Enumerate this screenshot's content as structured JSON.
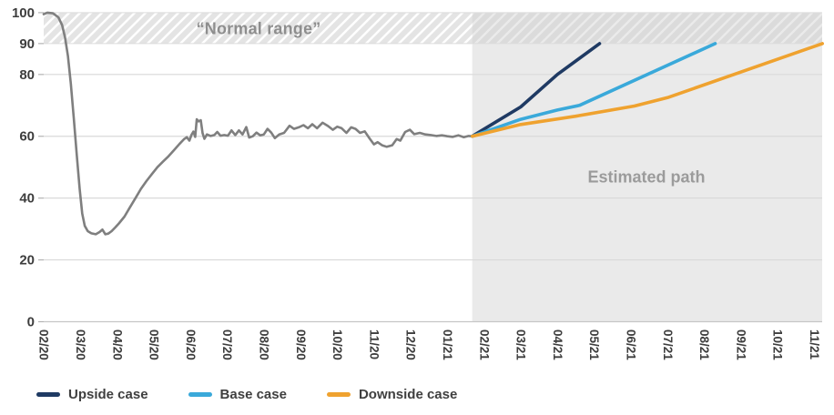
{
  "chart_data": {
    "type": "line",
    "title": "",
    "xlabel": "",
    "ylabel": "",
    "ylim": [
      0,
      100
    ],
    "grid": "horizontal",
    "x_tick_labels": [
      "02/20",
      "03/20",
      "04/20",
      "05/20",
      "06/20",
      "07/20",
      "08/20",
      "09/20",
      "10/20",
      "11/20",
      "12/20",
      "01/21",
      "02/21",
      "03/21",
      "04/21",
      "05/21",
      "06/21",
      "07/21",
      "08/21",
      "09/21",
      "10/21",
      "11/21"
    ],
    "y_tick_labels": [
      0,
      20,
      40,
      60,
      80,
      90,
      100
    ],
    "gridline_values": [
      0,
      20,
      40,
      60,
      80
    ],
    "annotations": {
      "normal_range_label": "“Normal range”",
      "estimated_path_label": "Estimated path"
    },
    "normal_range_band": {
      "from": 90,
      "to": 100
    },
    "estimated_region": {
      "start_month_index": 11.68,
      "end_month_index": 21.22
    },
    "series": [
      {
        "name": "History",
        "color": "#7f7f7f",
        "width": 2.6,
        "in_legend": false,
        "points": [
          [
            0,
            99.5
          ],
          [
            0.1,
            100
          ],
          [
            0.25,
            99.8
          ],
          [
            0.4,
            98.5
          ],
          [
            0.5,
            96
          ],
          [
            0.58,
            92
          ],
          [
            0.66,
            86
          ],
          [
            0.74,
            77
          ],
          [
            0.82,
            66
          ],
          [
            0.9,
            54
          ],
          [
            0.98,
            43
          ],
          [
            1.05,
            35
          ],
          [
            1.12,
            31
          ],
          [
            1.2,
            29.3
          ],
          [
            1.3,
            28.6
          ],
          [
            1.42,
            28.3
          ],
          [
            1.52,
            29
          ],
          [
            1.6,
            29.8
          ],
          [
            1.68,
            28.3
          ],
          [
            1.76,
            28.5
          ],
          [
            1.85,
            29.3
          ],
          [
            1.95,
            30.5
          ],
          [
            2.05,
            31.8
          ],
          [
            2.2,
            34
          ],
          [
            2.35,
            37
          ],
          [
            2.5,
            40
          ],
          [
            2.65,
            43
          ],
          [
            2.8,
            45.5
          ],
          [
            2.95,
            47.8
          ],
          [
            3.1,
            50
          ],
          [
            3.25,
            51.8
          ],
          [
            3.4,
            53.5
          ],
          [
            3.55,
            55.5
          ],
          [
            3.7,
            57.5
          ],
          [
            3.82,
            59
          ],
          [
            3.9,
            59.7
          ],
          [
            3.97,
            58.6
          ],
          [
            4.03,
            60.5
          ],
          [
            4.08,
            61.5
          ],
          [
            4.13,
            59.8
          ],
          [
            4.17,
            65.5
          ],
          [
            4.22,
            64.8
          ],
          [
            4.28,
            65.2
          ],
          [
            4.33,
            61
          ],
          [
            4.38,
            59.2
          ],
          [
            4.45,
            60.6
          ],
          [
            4.55,
            60.1
          ],
          [
            4.65,
            60.4
          ],
          [
            4.73,
            61.4
          ],
          [
            4.82,
            60.2
          ],
          [
            4.92,
            60.4
          ],
          [
            5.02,
            60.2
          ],
          [
            5.12,
            61.9
          ],
          [
            5.22,
            60.4
          ],
          [
            5.32,
            61.9
          ],
          [
            5.42,
            60.6
          ],
          [
            5.52,
            63
          ],
          [
            5.6,
            59.6
          ],
          [
            5.7,
            60
          ],
          [
            5.8,
            61.2
          ],
          [
            5.9,
            60.3
          ],
          [
            6,
            60.6
          ],
          [
            6.1,
            62.4
          ],
          [
            6.2,
            61.2
          ],
          [
            6.3,
            59.4
          ],
          [
            6.42,
            60.6
          ],
          [
            6.55,
            61.1
          ],
          [
            6.7,
            63.4
          ],
          [
            6.82,
            62.4
          ],
          [
            6.95,
            62.9
          ],
          [
            7.08,
            63.6
          ],
          [
            7.2,
            62.6
          ],
          [
            7.32,
            63.9
          ],
          [
            7.45,
            62.6
          ],
          [
            7.6,
            64.4
          ],
          [
            7.75,
            63.3
          ],
          [
            7.88,
            62.1
          ],
          [
            8,
            63.1
          ],
          [
            8.12,
            62.6
          ],
          [
            8.25,
            61.1
          ],
          [
            8.38,
            62.9
          ],
          [
            8.5,
            62.4
          ],
          [
            8.62,
            61.1
          ],
          [
            8.75,
            61.6
          ],
          [
            8.88,
            59.3
          ],
          [
            9,
            57.4
          ],
          [
            9.1,
            58.1
          ],
          [
            9.22,
            57.1
          ],
          [
            9.35,
            56.6
          ],
          [
            9.5,
            57.1
          ],
          [
            9.62,
            59.1
          ],
          [
            9.72,
            58.6
          ],
          [
            9.85,
            61.4
          ],
          [
            9.98,
            62.1
          ],
          [
            10.1,
            60.7
          ],
          [
            10.25,
            61.1
          ],
          [
            10.4,
            60.6
          ],
          [
            10.55,
            60.4
          ],
          [
            10.7,
            60.1
          ],
          [
            10.85,
            60.3
          ],
          [
            11,
            60
          ],
          [
            11.15,
            59.8
          ],
          [
            11.3,
            60.3
          ],
          [
            11.45,
            59.7
          ],
          [
            11.58,
            60.1
          ],
          [
            11.68,
            60
          ]
        ]
      },
      {
        "name": "Upside case",
        "color": "#1f3a63",
        "width": 3.6,
        "in_legend": true,
        "points": [
          [
            11.68,
            60
          ],
          [
            13,
            69.5
          ],
          [
            14,
            80
          ],
          [
            15.15,
            90
          ]
        ]
      },
      {
        "name": "Base case",
        "color": "#3aa9da",
        "width": 3.6,
        "in_legend": true,
        "points": [
          [
            11.68,
            60
          ],
          [
            13,
            65.5
          ],
          [
            14,
            68.5
          ],
          [
            14.6,
            70
          ],
          [
            18.3,
            90
          ]
        ]
      },
      {
        "name": "Downside case",
        "color": "#efa22f",
        "width": 3.6,
        "in_legend": true,
        "points": [
          [
            11.68,
            60
          ],
          [
            13,
            63.8
          ],
          [
            14.5,
            66.5
          ],
          [
            16.1,
            69.8
          ],
          [
            17,
            72.5
          ],
          [
            21.22,
            90
          ]
        ]
      }
    ],
    "legend": [
      {
        "label": "Upside case",
        "color": "#1f3a63"
      },
      {
        "label": "Base case",
        "color": "#3aa9da"
      },
      {
        "label": "Downside case",
        "color": "#efa22f"
      }
    ],
    "colors": {
      "history_line": "#7f7f7f",
      "shade_region": "#eaeaea",
      "gridline": "#d9d9d9",
      "axis_text": "#3d3d3d",
      "hatch_stripe": "#cdcdcd",
      "annotation_text": "#8e8e8e"
    }
  }
}
